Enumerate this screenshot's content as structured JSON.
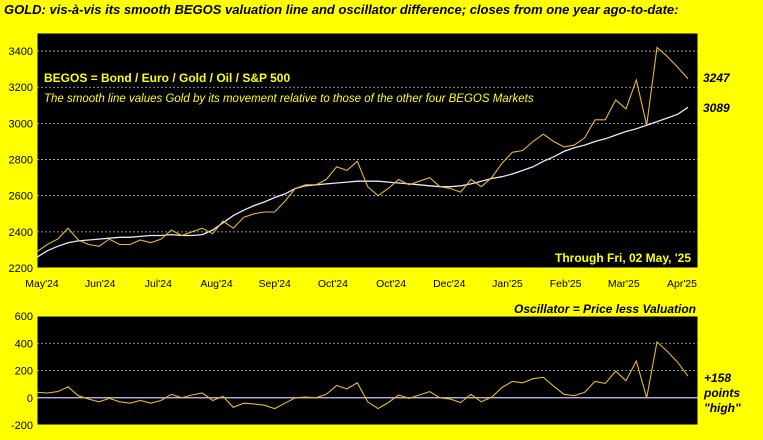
{
  "chart_data": [
    {
      "type": "line",
      "title": "GOLD:  vis-à-vis its smooth BEGOS valuation line and oscillator difference; closes from one year ago-to-date:",
      "annotation_heading": "BEGOS = Bond / Euro / Gold / Oil / S&P 500",
      "annotation_text": "The smooth line values Gold by its movement relative to those of the other four BEGOS Markets",
      "through_label": "Through Fri, 02 May, '25",
      "x_tick_labels": [
        "May'24",
        "Jun'24",
        "Jul'24",
        "Aug'24",
        "Sep'24",
        "Oct'24",
        "Oct'24",
        "Dec'24",
        "Jan'25",
        "Feb'25",
        "Mar'25",
        "Apr'25"
      ],
      "ylim": [
        2200,
        3500
      ],
      "y_ticks": [
        2200,
        2400,
        2600,
        2800,
        3000,
        3200,
        3400
      ],
      "grid": true,
      "colors": {
        "background": "#000000",
        "frame": "#ffff00",
        "price": "#e8b82a",
        "valuation": "#e6e6ff",
        "grid": "#c8c8c8",
        "text": "#ffff00"
      },
      "x": [
        0,
        4,
        8,
        12,
        16,
        20,
        24,
        28,
        32,
        36,
        40,
        44,
        48,
        52,
        56,
        60,
        64,
        68,
        72,
        76,
        80,
        84,
        88,
        92,
        96,
        100,
        104,
        108,
        112,
        116,
        120,
        124,
        128,
        132,
        136,
        140,
        144,
        148,
        152,
        156,
        160,
        164,
        168,
        172,
        176,
        180,
        184,
        188,
        192,
        196,
        200,
        204,
        208,
        212,
        216,
        220,
        224,
        228,
        232,
        236,
        240,
        244,
        248,
        252
      ],
      "series": [
        {
          "name": "Price",
          "end_label": "3247",
          "values": [
            2290,
            2330,
            2360,
            2420,
            2355,
            2330,
            2320,
            2360,
            2330,
            2330,
            2355,
            2340,
            2360,
            2410,
            2380,
            2400,
            2420,
            2390,
            2460,
            2420,
            2480,
            2500,
            2510,
            2510,
            2570,
            2640,
            2660,
            2660,
            2690,
            2760,
            2740,
            2790,
            2650,
            2600,
            2640,
            2690,
            2660,
            2680,
            2700,
            2650,
            2640,
            2620,
            2690,
            2650,
            2700,
            2780,
            2840,
            2850,
            2900,
            2940,
            2900,
            2870,
            2880,
            2920,
            3020,
            3020,
            3130,
            3080,
            3240,
            2990,
            3420,
            3370,
            3310,
            3247
          ]
        },
        {
          "name": "Valuation",
          "end_label": "3089",
          "values": [
            2260,
            2295,
            2320,
            2340,
            2350,
            2355,
            2360,
            2365,
            2370,
            2370,
            2375,
            2380,
            2380,
            2385,
            2380,
            2380,
            2385,
            2410,
            2450,
            2490,
            2520,
            2545,
            2565,
            2590,
            2610,
            2640,
            2655,
            2660,
            2665,
            2670,
            2675,
            2680,
            2680,
            2680,
            2675,
            2670,
            2665,
            2660,
            2655,
            2650,
            2650,
            2655,
            2665,
            2680,
            2695,
            2705,
            2720,
            2740,
            2760,
            2790,
            2815,
            2845,
            2865,
            2880,
            2900,
            2915,
            2935,
            2955,
            2970,
            2990,
            3010,
            3030,
            3050,
            3089
          ]
        }
      ]
    },
    {
      "type": "line",
      "title": "Oscillator = Price less Valuation",
      "ylim": [
        -200,
        600
      ],
      "y_ticks": [
        -200,
        0,
        200,
        400,
        600
      ],
      "grid": true,
      "colors": {
        "line": "#e8b82a",
        "zero": "#c8c8ff"
      },
      "end_label_lines": [
        "+158",
        "points",
        "\"high\""
      ],
      "x": [
        0,
        4,
        8,
        12,
        16,
        20,
        24,
        28,
        32,
        36,
        40,
        44,
        48,
        52,
        56,
        60,
        64,
        68,
        72,
        76,
        80,
        84,
        88,
        92,
        96,
        100,
        104,
        108,
        112,
        116,
        120,
        124,
        128,
        132,
        136,
        140,
        144,
        148,
        152,
        156,
        160,
        164,
        168,
        172,
        176,
        180,
        184,
        188,
        192,
        196,
        200,
        204,
        208,
        212,
        216,
        220,
        224,
        228,
        232,
        236,
        240,
        244,
        248,
        252
      ],
      "series": [
        {
          "name": "Oscillator",
          "values": [
            40,
            35,
            45,
            80,
            15,
            -10,
            -30,
            -5,
            -30,
            -40,
            -20,
            -40,
            -20,
            25,
            0,
            20,
            35,
            -20,
            10,
            -70,
            -40,
            -45,
            -55,
            -80,
            -40,
            0,
            5,
            0,
            25,
            90,
            65,
            110,
            -30,
            -80,
            -35,
            20,
            -5,
            20,
            45,
            0,
            -10,
            -35,
            25,
            -30,
            5,
            75,
            120,
            110,
            140,
            150,
            85,
            25,
            15,
            40,
            120,
            105,
            195,
            125,
            270,
            0,
            410,
            340,
            260,
            158
          ]
        }
      ]
    }
  ]
}
